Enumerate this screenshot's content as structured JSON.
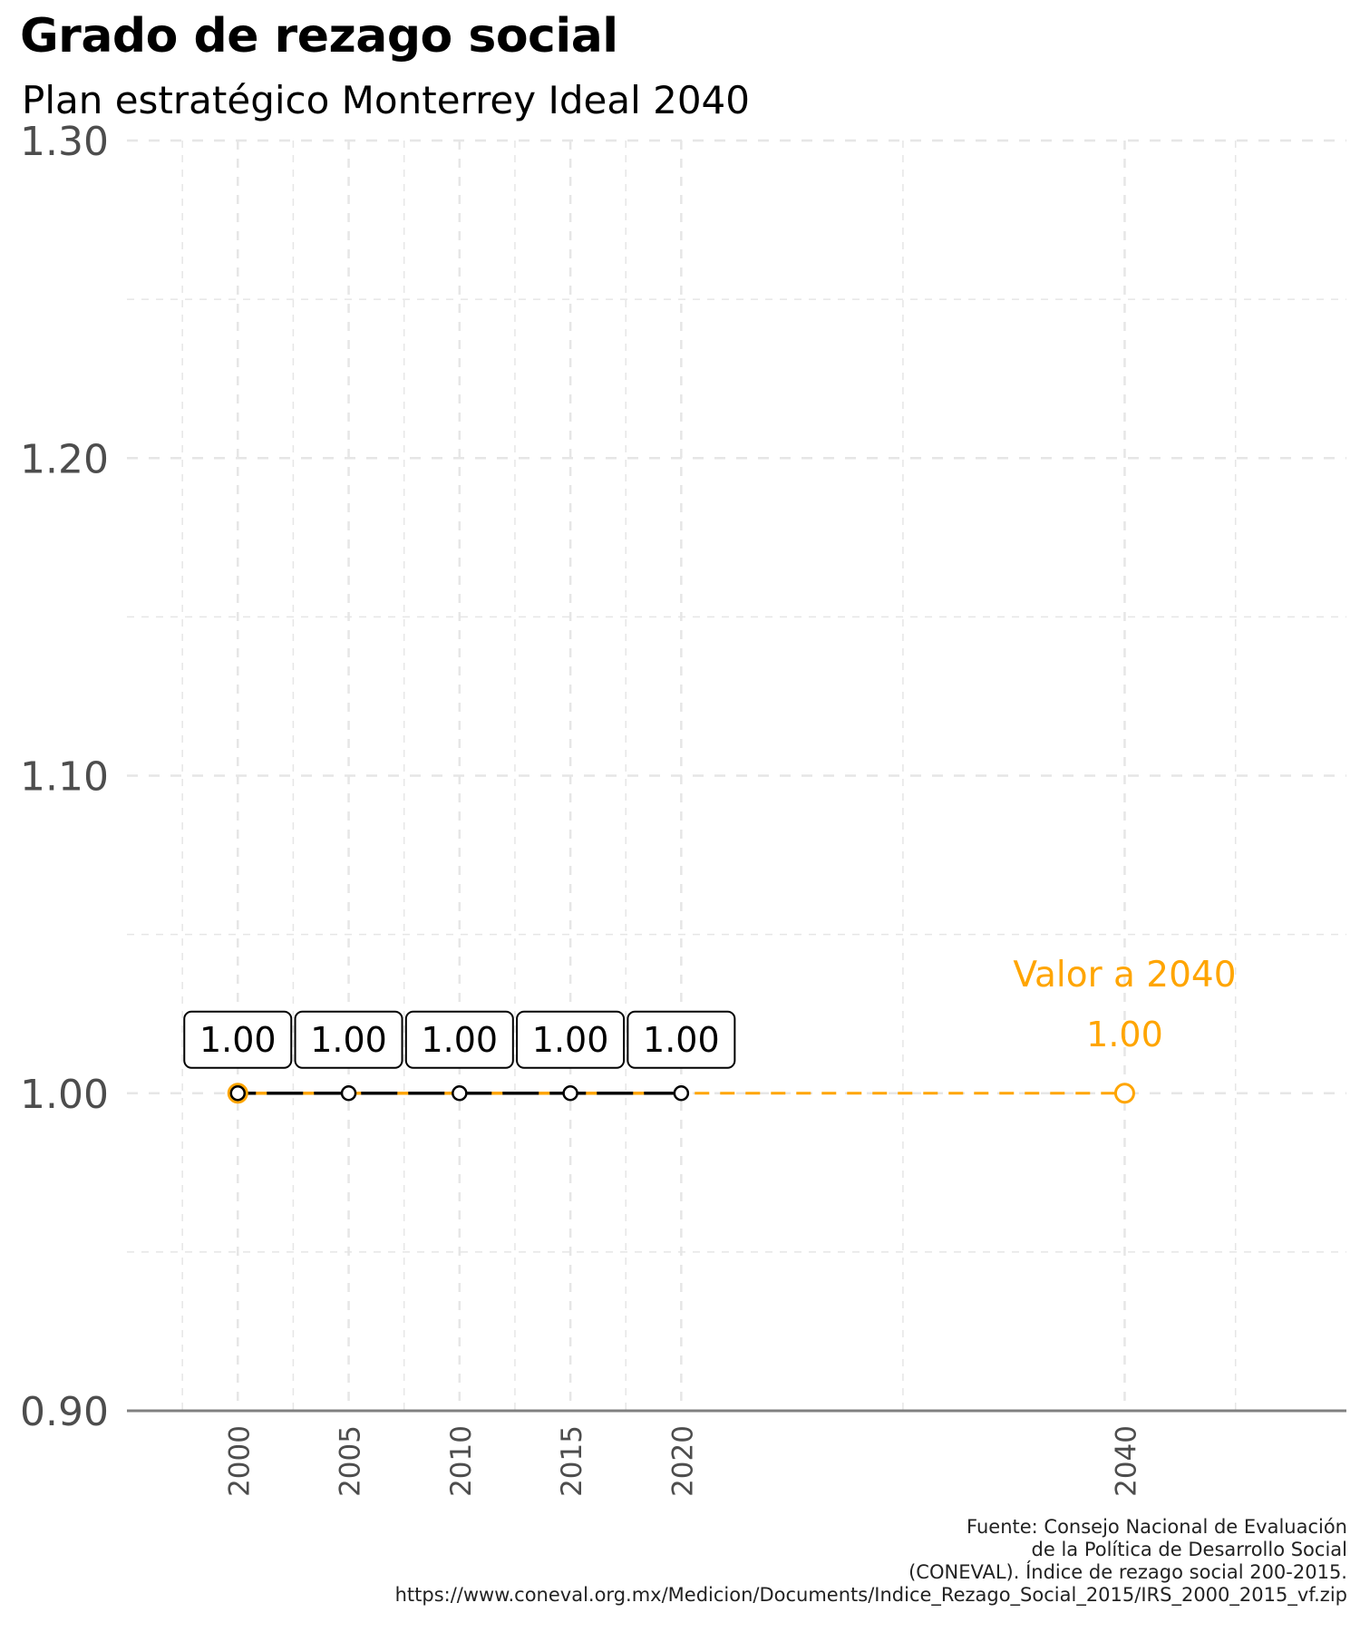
{
  "title": "Grado de rezago social",
  "subtitle": "Plan estratégico Monterrey Ideal 2040",
  "caption": [
    "Fuente: Consejo Nacional de Evaluación",
    "de la Política de Desarrollo Social",
    "(CONEVAL). Índice de rezago social 200-2015.",
    "https://www.coneval.org.mx/Medicion/Documents/Indice_Rezago_Social_2015/IRS_2000_2015_vf.zip"
  ],
  "colors": {
    "observed": "#000000",
    "target": "#FFA500",
    "axis_text": "#4d4d4d",
    "grid": "#e6e6e6",
    "axis_line": "#808080"
  },
  "chart_data": {
    "type": "line",
    "title": "Grado de rezago social",
    "subtitle": "Plan estratégico Monterrey Ideal 2040",
    "xlabel": "",
    "ylabel": "",
    "xlim": [
      1995,
      2050
    ],
    "ylim": [
      0.9,
      1.3
    ],
    "x_ticks": [
      2000,
      2005,
      2010,
      2015,
      2020,
      2040
    ],
    "y_ticks": [
      0.9,
      1.0,
      1.1,
      1.2,
      1.3
    ],
    "y_tick_labels": [
      "0.90",
      "1.00",
      "1.10",
      "1.20",
      "1.30"
    ],
    "grid": true,
    "series": [
      {
        "style": "solid",
        "color": "#000000",
        "x": [
          2000,
          2005,
          2010,
          2015,
          2020
        ],
        "y": [
          1.0,
          1.0,
          1.0,
          1.0,
          1.0
        ],
        "data_labels": [
          "1.00",
          "1.00",
          "1.00",
          "1.00",
          "1.00"
        ]
      },
      {
        "style": "dashed",
        "color": "#FFA500",
        "x": [
          2000,
          2040
        ],
        "y": [
          1.0,
          1.0
        ]
      }
    ],
    "annotations": [
      {
        "text": "Valor a 2040",
        "x": 2040,
        "y": 1.0
      },
      {
        "text": "1.00",
        "x": 2040,
        "y": 1.0
      }
    ]
  }
}
